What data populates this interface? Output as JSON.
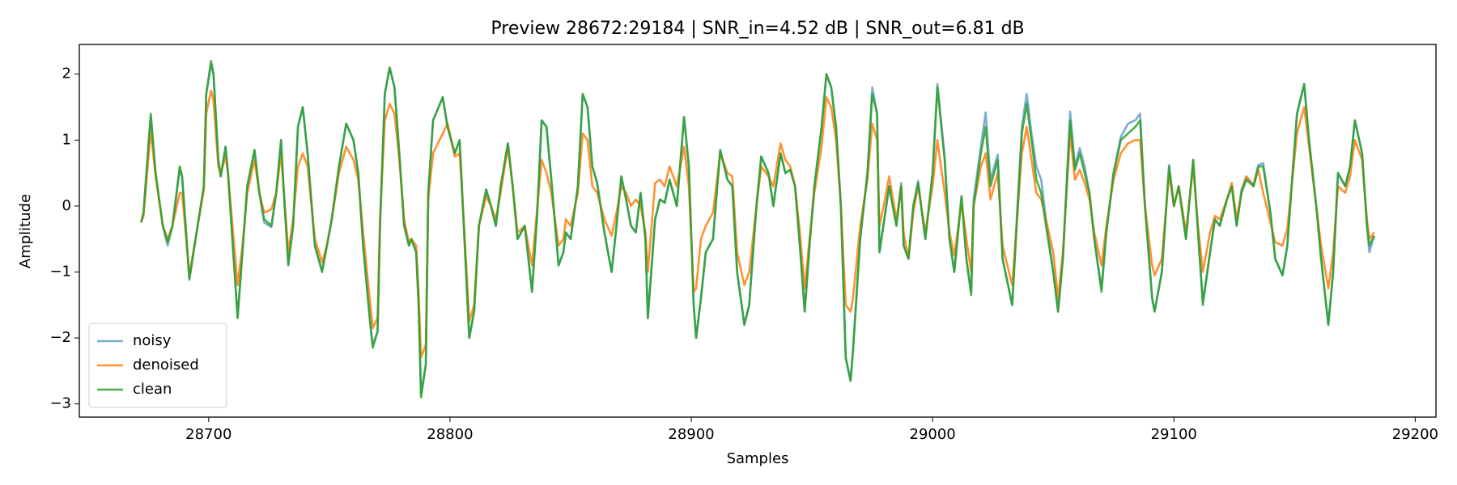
{
  "chart_data": {
    "type": "line",
    "title": "Preview 28672:29184 | SNR_in=4.52 dB | SNR_out=6.81 dB",
    "xlabel": "Samples",
    "ylabel": "Amplitude",
    "xlim": [
      28646.4,
      29208.6
    ],
    "ylim": [
      -3.2,
      2.45
    ],
    "xticks": [
      28700,
      28800,
      28900,
      29000,
      29100,
      29200
    ],
    "yticks": [
      {
        "value": -3,
        "label": "−3"
      },
      {
        "value": -2,
        "label": "−2"
      },
      {
        "value": -1,
        "label": "−1"
      },
      0,
      1,
      2
    ],
    "legend": "lower left",
    "x": [
      28672,
      28673,
      28676,
      28678,
      28681,
      28683,
      28685,
      28688,
      28689,
      28692,
      28695,
      28698,
      28699,
      28701,
      28702,
      28704,
      28705,
      28707,
      28708,
      28712,
      28714,
      28716,
      28719,
      28721,
      28723,
      28726,
      28728,
      28730,
      28731,
      28733,
      28735,
      28737,
      28739,
      28741,
      28744,
      28747,
      28749,
      28751,
      28754,
      28757,
      28760,
      28762,
      28764,
      28767,
      28768,
      28770,
      28771,
      28773,
      28775,
      28777,
      28779,
      28781,
      28783,
      28784,
      28786,
      28787,
      28788,
      28790,
      28791,
      28793,
      28797,
      28799,
      28802,
      28804,
      28806,
      28808,
      28810,
      28812,
      28815,
      28817,
      28819,
      28821,
      28824,
      28826,
      28828,
      28831,
      28834,
      28836,
      28838,
      28840,
      28842,
      28845,
      28847,
      28848,
      28850,
      28853,
      28855,
      28857,
      28859,
      28861,
      28864,
      28867,
      28869,
      28871,
      28873,
      28875,
      28877,
      28879,
      28881,
      28882,
      28885,
      28887,
      28889,
      28891,
      28894,
      28897,
      28899,
      28901,
      28902,
      28904,
      28906,
      28909,
      28912,
      28915,
      28917,
      28919,
      28922,
      28924,
      28927,
      28929,
      28932,
      28934,
      28937,
      28939,
      28941,
      28943,
      28945,
      28947,
      28949,
      28951,
      28954,
      28956,
      28958,
      28960,
      28962,
      28964,
      28966,
      28967,
      28970,
      28973,
      28975,
      28977,
      28978,
      28980,
      28982,
      28985,
      28987,
      28988,
      28990,
      28992,
      28994,
      28997,
      29000,
      29002,
      29005,
      29007,
      29009,
      29012,
      29014,
      29016,
      29017,
      29020,
      29022,
      29024,
      29027,
      29029,
      29033,
      29035,
      29037,
      29039,
      29041,
      29043,
      29045,
      29047,
      29050,
      29052,
      29054,
      29057,
      29059,
      29061,
      29063,
      29065,
      29067,
      29070,
      29072,
      29075,
      29078,
      29081,
      29084,
      29086,
      29088,
      29091,
      29092,
      29095,
      29098,
      29100,
      29102,
      29105,
      29108,
      29110,
      29112,
      29115,
      29117,
      29119,
      29122,
      29124,
      29126,
      29128,
      29130,
      29133,
      29135,
      29137,
      29140,
      29142,
      29145,
      29147,
      29151,
      29154,
      29156,
      29159,
      29161,
      29164,
      29166,
      29168,
      29171,
      29173,
      29175,
      29178,
      29180,
      29181,
      29183
    ],
    "series": [
      {
        "name": "noisy",
        "color": "#1f77b4",
        "opacity": 0.6,
        "values": [
          -0.25,
          -0.1,
          1.35,
          0.5,
          -0.3,
          -0.6,
          -0.3,
          0.55,
          0.45,
          -1.12,
          -0.4,
          0.3,
          1.7,
          2.15,
          2.0,
          0.7,
          0.45,
          0.9,
          0.5,
          -1.68,
          -0.7,
          0.3,
          0.85,
          0.2,
          -0.25,
          -0.32,
          0.2,
          1.0,
          0.3,
          -0.88,
          -0.3,
          1.2,
          1.5,
          0.8,
          -0.6,
          -0.98,
          -0.6,
          -0.2,
          0.6,
          1.25,
          1.0,
          0.5,
          -0.6,
          -1.8,
          -2.1,
          -1.9,
          -0.3,
          1.7,
          2.1,
          1.8,
          0.8,
          -0.3,
          -0.6,
          -0.5,
          -0.7,
          -1.5,
          -2.85,
          -2.4,
          0.2,
          1.3,
          1.65,
          1.2,
          0.8,
          1.0,
          -0.5,
          -2.0,
          -1.6,
          -0.3,
          0.25,
          0.0,
          -0.3,
          0.3,
          0.95,
          0.3,
          -0.5,
          -0.3,
          -1.3,
          -0.2,
          1.3,
          1.2,
          0.4,
          -0.9,
          -0.7,
          -0.4,
          -0.5,
          0.3,
          1.7,
          1.5,
          0.6,
          0.35,
          -0.4,
          -1.0,
          -0.3,
          0.45,
          0.1,
          -0.3,
          -0.4,
          0.2,
          -0.5,
          -1.7,
          -0.2,
          0.1,
          0.05,
          0.4,
          0.0,
          1.35,
          0.6,
          -1.5,
          -2.0,
          -1.4,
          -0.7,
          -0.5,
          0.85,
          0.4,
          0.3,
          -1.0,
          -1.8,
          -1.5,
          0.0,
          0.75,
          0.5,
          0.0,
          0.8,
          0.5,
          0.55,
          0.3,
          -0.6,
          -1.6,
          -0.6,
          0.3,
          1.2,
          2.0,
          1.8,
          1.2,
          0.0,
          -2.3,
          -2.65,
          -2.2,
          -0.5,
          0.5,
          1.8,
          1.4,
          -0.7,
          -0.2,
          0.3,
          -0.3,
          0.35,
          -0.6,
          -0.8,
          0.0,
          0.38,
          -0.5,
          0.5,
          1.85,
          0.75,
          -0.5,
          -1.0,
          0.15,
          -0.8,
          -1.3,
          0.1,
          0.9,
          1.42,
          0.4,
          0.78,
          -0.8,
          -1.5,
          -0.1,
          1.2,
          1.7,
          1.1,
          0.6,
          0.4,
          -0.2,
          -1.0,
          -1.6,
          -0.8,
          1.43,
          0.6,
          0.88,
          0.6,
          0.2,
          -0.5,
          -1.25,
          -0.4,
          0.5,
          1.05,
          1.25,
          1.3,
          1.4,
          0.0,
          -1.4,
          -1.6,
          -1.0,
          0.62,
          0.0,
          0.3,
          -0.5,
          0.7,
          -0.4,
          -1.45,
          -0.7,
          -0.2,
          -0.3,
          0.1,
          0.3,
          -0.3,
          0.25,
          0.45,
          0.32,
          0.62,
          0.65,
          -0.1,
          -0.8,
          -1.05,
          -0.6,
          1.4,
          1.85,
          1.0,
          0.0,
          -0.8,
          -1.8,
          -1.0,
          0.5,
          0.3,
          0.6,
          1.3,
          0.8,
          -0.3,
          -0.7,
          -0.45
        ]
      },
      {
        "name": "denoised",
        "color": "#ff7f0e",
        "opacity": 0.85,
        "values": [
          -0.25,
          -0.15,
          1.15,
          0.45,
          -0.3,
          -0.5,
          -0.3,
          0.2,
          0.2,
          -1.05,
          -0.4,
          0.25,
          1.4,
          1.75,
          1.6,
          0.6,
          0.5,
          0.75,
          0.5,
          -1.2,
          -0.6,
          0.2,
          0.7,
          0.2,
          -0.1,
          -0.05,
          0.2,
          0.8,
          0.3,
          -0.7,
          -0.2,
          0.6,
          0.8,
          0.6,
          -0.5,
          -0.85,
          -0.6,
          -0.2,
          0.5,
          0.9,
          0.7,
          0.4,
          -0.4,
          -1.5,
          -1.85,
          -1.7,
          -0.2,
          1.3,
          1.55,
          1.4,
          0.7,
          -0.2,
          -0.55,
          -0.5,
          -0.6,
          -1.3,
          -2.3,
          -2.1,
          0.1,
          0.8,
          1.1,
          1.25,
          0.75,
          0.8,
          -0.4,
          -1.75,
          -1.5,
          -0.3,
          0.15,
          0.0,
          -0.2,
          0.2,
          0.9,
          0.3,
          -0.4,
          -0.3,
          -0.9,
          -0.1,
          0.7,
          0.5,
          0.2,
          -0.6,
          -0.5,
          -0.2,
          -0.3,
          0.2,
          1.1,
          1.0,
          0.3,
          0.2,
          -0.2,
          -0.45,
          -0.1,
          0.3,
          0.2,
          0.0,
          0.1,
          0.0,
          -0.4,
          -1.0,
          0.35,
          0.4,
          0.3,
          0.6,
          0.3,
          0.9,
          0.3,
          -1.3,
          -1.25,
          -0.5,
          -0.3,
          -0.1,
          0.8,
          0.5,
          0.45,
          -0.7,
          -1.2,
          -1.0,
          0.0,
          0.6,
          0.45,
          0.3,
          0.95,
          0.7,
          0.6,
          0.3,
          -0.4,
          -1.25,
          -0.5,
          0.2,
          0.9,
          1.65,
          1.5,
          1.0,
          0.0,
          -1.5,
          -1.6,
          -1.4,
          -0.3,
          0.4,
          1.25,
          1.0,
          -0.3,
          0.05,
          0.45,
          -0.2,
          0.3,
          -0.4,
          -0.8,
          -0.1,
          0.3,
          -0.4,
          0.3,
          1.0,
          0.2,
          -0.4,
          -0.75,
          0.05,
          -0.5,
          -1.0,
          0.0,
          0.6,
          0.8,
          0.1,
          0.5,
          -0.6,
          -1.2,
          -0.2,
          0.8,
          1.2,
          0.7,
          0.2,
          0.1,
          -0.2,
          -0.7,
          -1.4,
          -0.7,
          1.1,
          0.4,
          0.55,
          0.35,
          0.1,
          -0.4,
          -0.9,
          -0.3,
          0.4,
          0.8,
          0.95,
          1.0,
          1.0,
          0.0,
          -0.9,
          -1.05,
          -0.8,
          0.5,
          0.0,
          0.3,
          -0.4,
          0.6,
          -0.3,
          -1.0,
          -0.4,
          -0.15,
          -0.2,
          0.1,
          0.35,
          -0.2,
          0.2,
          0.45,
          0.3,
          0.55,
          0.2,
          -0.25,
          -0.55,
          -0.6,
          -0.35,
          1.1,
          1.5,
          0.9,
          0.0,
          -0.6,
          -1.25,
          -0.7,
          0.3,
          0.2,
          0.45,
          1.0,
          0.7,
          -0.2,
          -0.5,
          -0.4
        ]
      },
      {
        "name": "clean",
        "color": "#2ca02c",
        "opacity": 0.85,
        "values": [
          -0.25,
          -0.1,
          1.4,
          0.5,
          -0.3,
          -0.55,
          -0.3,
          0.6,
          0.45,
          -1.1,
          -0.4,
          0.3,
          1.7,
          2.2,
          2.0,
          0.7,
          0.45,
          0.9,
          0.5,
          -1.7,
          -0.7,
          0.3,
          0.85,
          0.2,
          -0.2,
          -0.3,
          0.2,
          1.0,
          0.3,
          -0.9,
          -0.3,
          1.2,
          1.5,
          0.8,
          -0.6,
          -1.0,
          -0.6,
          -0.2,
          0.6,
          1.25,
          1.0,
          0.5,
          -0.6,
          -1.8,
          -2.15,
          -1.9,
          -0.3,
          1.7,
          2.1,
          1.8,
          0.8,
          -0.3,
          -0.6,
          -0.5,
          -0.7,
          -1.5,
          -2.9,
          -2.4,
          0.2,
          1.3,
          1.65,
          1.2,
          0.8,
          1.0,
          -0.5,
          -2.0,
          -1.6,
          -0.3,
          0.25,
          0.0,
          -0.3,
          0.3,
          0.95,
          0.3,
          -0.5,
          -0.3,
          -1.3,
          -0.2,
          1.3,
          1.2,
          0.4,
          -0.9,
          -0.7,
          -0.4,
          -0.5,
          0.3,
          1.7,
          1.5,
          0.6,
          0.35,
          -0.4,
          -1.0,
          -0.3,
          0.45,
          0.1,
          -0.3,
          -0.4,
          0.2,
          -0.5,
          -1.7,
          -0.2,
          0.1,
          0.05,
          0.4,
          0.0,
          1.35,
          0.6,
          -1.5,
          -2.0,
          -1.4,
          -0.7,
          -0.5,
          0.85,
          0.4,
          0.3,
          -1.0,
          -1.8,
          -1.5,
          0.0,
          0.75,
          0.5,
          0.0,
          0.8,
          0.5,
          0.55,
          0.3,
          -0.6,
          -1.6,
          -0.6,
          0.3,
          1.2,
          2.0,
          1.8,
          1.2,
          0.0,
          -2.3,
          -2.65,
          -2.2,
          -0.5,
          0.5,
          1.7,
          1.4,
          -0.7,
          -0.2,
          0.3,
          -0.3,
          0.3,
          -0.6,
          -0.8,
          0.0,
          0.35,
          -0.5,
          0.5,
          1.8,
          0.7,
          -0.5,
          -1.0,
          0.15,
          -0.8,
          -1.35,
          0.0,
          0.8,
          1.2,
          0.3,
          0.7,
          -0.8,
          -1.5,
          -0.2,
          1.1,
          1.55,
          1.0,
          0.4,
          0.2,
          -0.3,
          -1.0,
          -1.6,
          -0.8,
          1.3,
          0.55,
          0.8,
          0.5,
          0.2,
          -0.5,
          -1.3,
          -0.4,
          0.5,
          1.0,
          1.1,
          1.2,
          1.3,
          0.0,
          -1.4,
          -1.6,
          -1.0,
          0.6,
          0.0,
          0.3,
          -0.5,
          0.7,
          -0.4,
          -1.5,
          -0.7,
          -0.2,
          -0.3,
          0.1,
          0.3,
          -0.3,
          0.2,
          0.4,
          0.3,
          0.6,
          0.6,
          -0.1,
          -0.8,
          -1.05,
          -0.6,
          1.4,
          1.85,
          1.0,
          0.0,
          -0.8,
          -1.8,
          -1.0,
          0.5,
          0.3,
          0.6,
          1.3,
          0.8,
          -0.3,
          -0.6,
          -0.45
        ]
      }
    ]
  }
}
